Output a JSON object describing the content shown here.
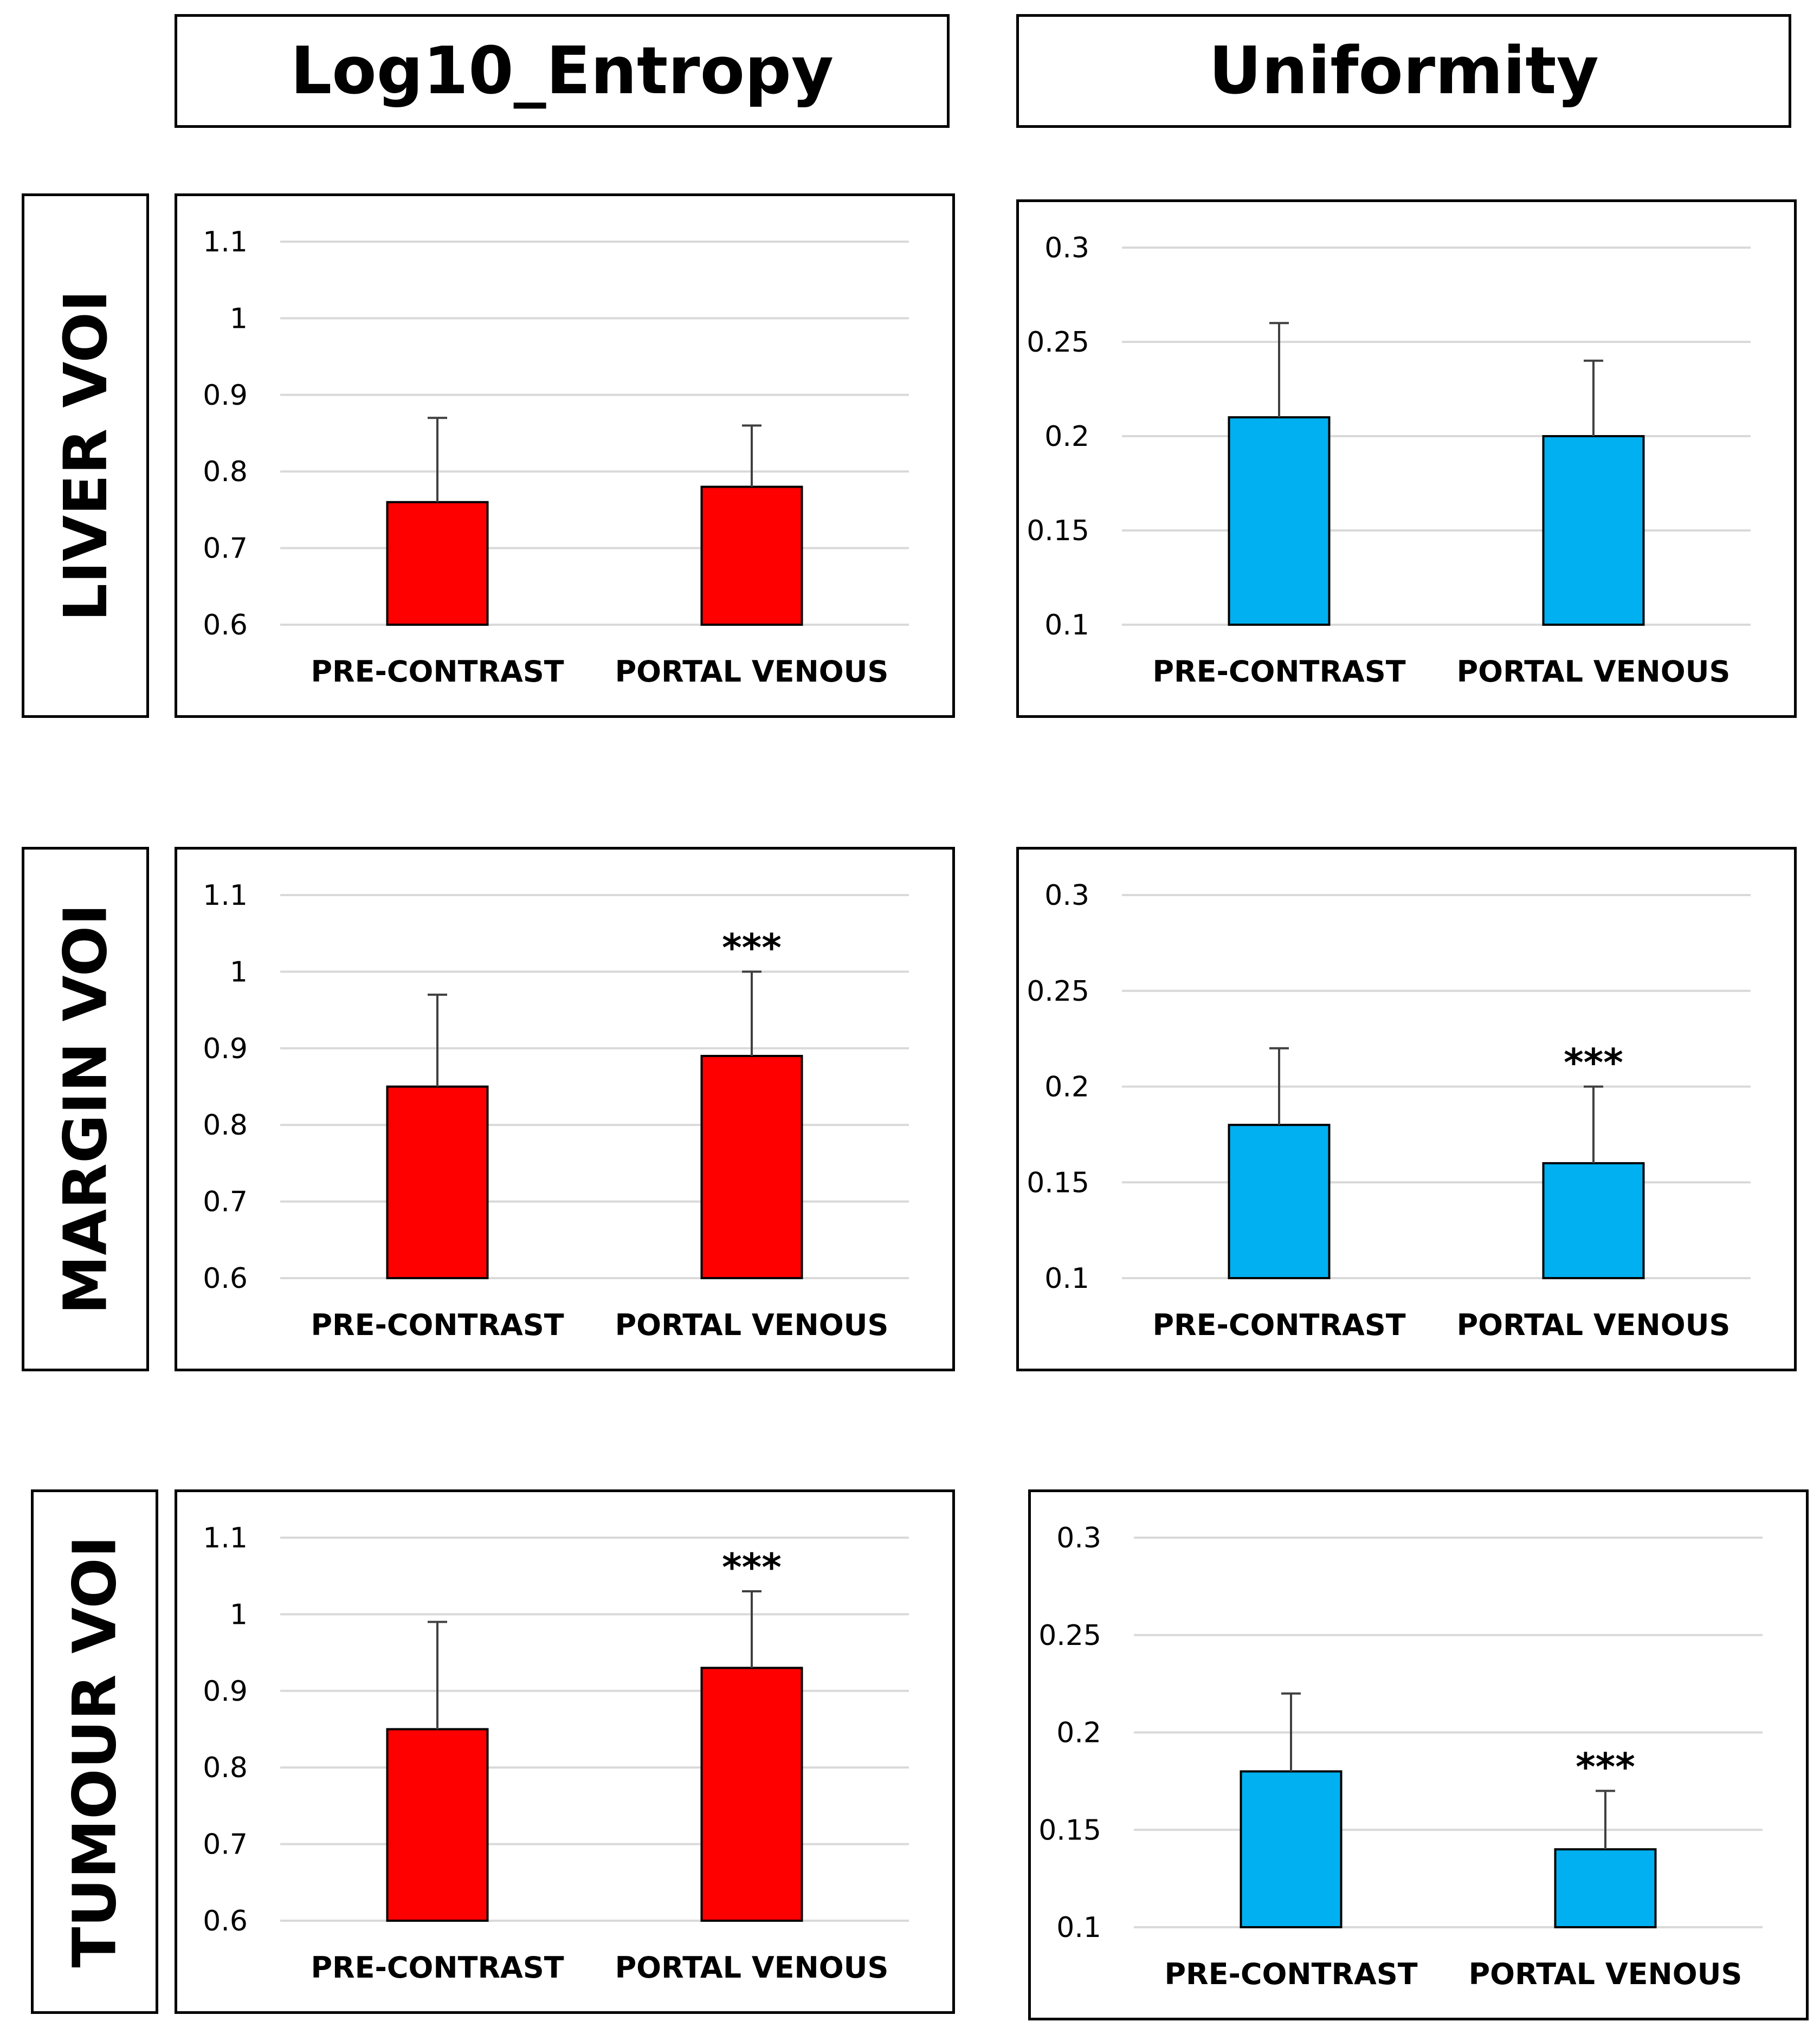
{
  "column_headers": [
    "Log10_Entropy",
    "Uniformity"
  ],
  "row_headers": [
    "LIVER VOI",
    "MARGIN VOI",
    "TUMOUR VOI"
  ],
  "colors": {
    "entropy_bar": "#ff0000",
    "uniformity_bar": "#00b0f0",
    "gridline": "#d9d9d9",
    "error_bar": "#404040"
  },
  "chart_data": [
    {
      "type": "bar",
      "row": "LIVER VOI",
      "metric": "Log10_Entropy",
      "categories": [
        "PRE-CONTRAST",
        "PORTAL VENOUS"
      ],
      "values": [
        0.76,
        0.78
      ],
      "error_plus": [
        0.11,
        0.08
      ],
      "significance": [
        "",
        ""
      ],
      "ylim": [
        0.6,
        1.1
      ],
      "yticks": [
        0.6,
        0.7,
        0.8,
        0.9,
        1,
        1.1
      ],
      "ytick_labels": [
        "0.6",
        "0.7",
        "0.8",
        "0.9",
        "1",
        "1.1"
      ],
      "color": "#ff0000",
      "grid": true
    },
    {
      "type": "bar",
      "row": "LIVER VOI",
      "metric": "Uniformity",
      "categories": [
        "PRE-CONTRAST",
        "PORTAL VENOUS"
      ],
      "values": [
        0.21,
        0.2
      ],
      "error_plus": [
        0.05,
        0.04
      ],
      "significance": [
        "",
        ""
      ],
      "ylim": [
        0.1,
        0.3
      ],
      "yticks": [
        0.1,
        0.15,
        0.2,
        0.25,
        0.3
      ],
      "ytick_labels": [
        "0.1",
        "0.15",
        "0.2",
        "0.25",
        "0.3"
      ],
      "color": "#00b0f0",
      "grid": true
    },
    {
      "type": "bar",
      "row": "MARGIN VOI",
      "metric": "Log10_Entropy",
      "categories": [
        "PRE-CONTRAST",
        "PORTAL VENOUS"
      ],
      "values": [
        0.85,
        0.89
      ],
      "error_plus": [
        0.12,
        0.11
      ],
      "significance": [
        "",
        "***"
      ],
      "ylim": [
        0.6,
        1.1
      ],
      "yticks": [
        0.6,
        0.7,
        0.8,
        0.9,
        1,
        1.1
      ],
      "ytick_labels": [
        "0.6",
        "0.7",
        "0.8",
        "0.9",
        "1",
        "1.1"
      ],
      "color": "#ff0000",
      "grid": true
    },
    {
      "type": "bar",
      "row": "MARGIN VOI",
      "metric": "Uniformity",
      "categories": [
        "PRE-CONTRAST",
        "PORTAL VENOUS"
      ],
      "values": [
        0.18,
        0.16
      ],
      "error_plus": [
        0.04,
        0.04
      ],
      "significance": [
        "",
        "***"
      ],
      "ylim": [
        0.1,
        0.3
      ],
      "yticks": [
        0.1,
        0.15,
        0.2,
        0.25,
        0.3
      ],
      "ytick_labels": [
        "0.1",
        "0.15",
        "0.2",
        "0.25",
        "0.3"
      ],
      "color": "#00b0f0",
      "grid": true
    },
    {
      "type": "bar",
      "row": "TUMOUR VOI",
      "metric": "Log10_Entropy",
      "categories": [
        "PRE-CONTRAST",
        "PORTAL VENOUS"
      ],
      "values": [
        0.85,
        0.93
      ],
      "error_plus": [
        0.14,
        0.1
      ],
      "significance": [
        "",
        "***"
      ],
      "ylim": [
        0.6,
        1.1
      ],
      "yticks": [
        0.6,
        0.7,
        0.8,
        0.9,
        1,
        1.1
      ],
      "ytick_labels": [
        "0.6",
        "0.7",
        "0.8",
        "0.9",
        "1",
        "1.1"
      ],
      "color": "#ff0000",
      "grid": true
    },
    {
      "type": "bar",
      "row": "TUMOUR VOI",
      "metric": "Uniformity",
      "categories": [
        "PRE-CONTRAST",
        "PORTAL VENOUS"
      ],
      "values": [
        0.18,
        0.14
      ],
      "error_plus": [
        0.04,
        0.03
      ],
      "significance": [
        "",
        "***"
      ],
      "ylim": [
        0.1,
        0.3
      ],
      "yticks": [
        0.1,
        0.15,
        0.2,
        0.25,
        0.3
      ],
      "ytick_labels": [
        "0.1",
        "0.15",
        "0.2",
        "0.25",
        "0.3"
      ],
      "color": "#00b0f0",
      "grid": true
    }
  ]
}
